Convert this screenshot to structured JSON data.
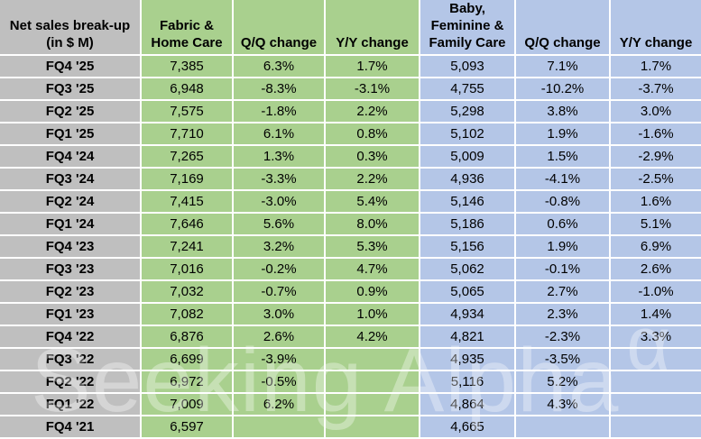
{
  "chart_data": {
    "type": "table",
    "title": "Net sales break-up (in $ M)",
    "headers": [
      "Net sales break-up\n(in $ M)",
      "Fabric &\nHome Care",
      "Q/Q change",
      "Y/Y change",
      "Baby,\nFeminine &\nFamily Care",
      "Q/Q change",
      "Y/Y change"
    ],
    "rows": [
      [
        "FQ4 '25",
        "7,385",
        "6.3%",
        "1.7%",
        "5,093",
        "7.1%",
        "1.7%"
      ],
      [
        "FQ3 '25",
        "6,948",
        "-8.3%",
        "-3.1%",
        "4,755",
        "-10.2%",
        "-3.7%"
      ],
      [
        "FQ2 '25",
        "7,575",
        "-1.8%",
        "2.2%",
        "5,298",
        "3.8%",
        "3.0%"
      ],
      [
        "FQ1 '25",
        "7,710",
        "6.1%",
        "0.8%",
        "5,102",
        "1.9%",
        "-1.6%"
      ],
      [
        "FQ4 '24",
        "7,265",
        "1.3%",
        "0.3%",
        "5,009",
        "1.5%",
        "-2.9%"
      ],
      [
        "FQ3 '24",
        "7,169",
        "-3.3%",
        "2.2%",
        "4,936",
        "-4.1%",
        "-2.5%"
      ],
      [
        "FQ2 '24",
        "7,415",
        "-3.0%",
        "5.4%",
        "5,146",
        "-0.8%",
        "1.6%"
      ],
      [
        "FQ1 '24",
        "7,646",
        "5.6%",
        "8.0%",
        "5,186",
        "0.6%",
        "5.1%"
      ],
      [
        "FQ4 '23",
        "7,241",
        "3.2%",
        "5.3%",
        "5,156",
        "1.9%",
        "6.9%"
      ],
      [
        "FQ3 '23",
        "7,016",
        "-0.2%",
        "4.7%",
        "5,062",
        "-0.1%",
        "2.6%"
      ],
      [
        "FQ2 '23",
        "7,032",
        "-0.7%",
        "0.9%",
        "5,065",
        "2.7%",
        "-1.0%"
      ],
      [
        "FQ1 '23",
        "7,082",
        "3.0%",
        "1.0%",
        "4,934",
        "2.3%",
        "1.4%"
      ],
      [
        "FQ4 '22",
        "6,876",
        "2.6%",
        "4.2%",
        "4,821",
        "-2.3%",
        "3.3%"
      ],
      [
        "FQ3 '22",
        "6,699",
        "-3.9%",
        "",
        "4,935",
        "-3.5%",
        ""
      ],
      [
        "FQ2 '22",
        "6,972",
        "-0.5%",
        "",
        "5,116",
        "5.2%",
        ""
      ],
      [
        "FQ1 '22",
        "7,009",
        "6.2%",
        "",
        "4,864",
        "4.3%",
        ""
      ],
      [
        "FQ4 '21",
        "6,597",
        "",
        "",
        "4,665",
        "",
        ""
      ]
    ]
  },
  "watermark": {
    "text": "Seeking Alpha",
    "symbol": "α"
  },
  "colors": {
    "green": "#a9d08e",
    "blue": "#b4c6e7",
    "gray": "#bfbfbf",
    "gridline": "#ffffff",
    "text": "#000000"
  }
}
